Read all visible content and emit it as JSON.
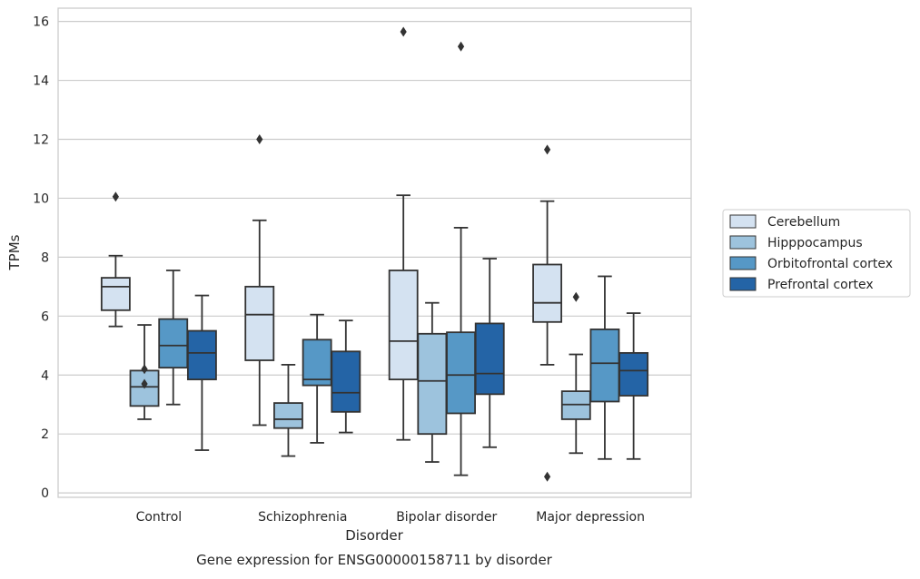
{
  "chart_data": {
    "type": "box",
    "title": "",
    "caption": "Gene expression for ENSG00000158711 by disorder",
    "xlabel": "Disorder",
    "ylabel": "TPMs",
    "ylim": [
      -0.15,
      16.45
    ],
    "yticks": [
      0,
      2,
      4,
      6,
      8,
      10,
      12,
      14,
      16
    ],
    "categories": [
      "Control",
      "Schizophrenia",
      "Bipolar disorder",
      "Major depression"
    ],
    "grid": true,
    "legend_position": "right",
    "series": [
      {
        "name": "Cerebellum",
        "color": "#d4e2f1",
        "boxes": [
          {
            "whisker_low": 5.65,
            "q1": 6.2,
            "median": 7.0,
            "q3": 7.3,
            "whisker_high": 8.05,
            "outliers": [
              10.05
            ]
          },
          {
            "whisker_low": 2.3,
            "q1": 4.5,
            "median": 6.05,
            "q3": 7.0,
            "whisker_high": 9.25,
            "outliers": [
              12.0
            ]
          },
          {
            "whisker_low": 1.8,
            "q1": 3.85,
            "median": 5.15,
            "q3": 7.55,
            "whisker_high": 10.1,
            "outliers": [
              15.65
            ]
          },
          {
            "whisker_low": 4.35,
            "q1": 5.8,
            "median": 6.45,
            "q3": 7.75,
            "whisker_high": 9.9,
            "outliers": [
              11.65,
              0.55
            ]
          }
        ]
      },
      {
        "name": "Hipppocampus",
        "color": "#9dc3dd",
        "boxes": [
          {
            "whisker_low": 2.5,
            "q1": 2.95,
            "median": 3.6,
            "q3": 4.15,
            "whisker_high": 5.7,
            "outliers": [
              4.2,
              3.7
            ]
          },
          {
            "whisker_low": 1.25,
            "q1": 2.2,
            "median": 2.5,
            "q3": 3.05,
            "whisker_high": 4.35,
            "outliers": []
          },
          {
            "whisker_low": 1.05,
            "q1": 2.0,
            "median": 3.8,
            "q3": 5.4,
            "whisker_high": 6.45,
            "outliers": []
          },
          {
            "whisker_low": 1.35,
            "q1": 2.5,
            "median": 3.0,
            "q3": 3.45,
            "whisker_high": 4.7,
            "outliers": [
              6.65
            ]
          }
        ]
      },
      {
        "name": "Orbitofrontal cortex",
        "color": "#5698c6",
        "boxes": [
          {
            "whisker_low": 3.0,
            "q1": 4.25,
            "median": 5.0,
            "q3": 5.9,
            "whisker_high": 7.55,
            "outliers": []
          },
          {
            "whisker_low": 1.7,
            "q1": 3.65,
            "median": 3.85,
            "q3": 5.2,
            "whisker_high": 6.05,
            "outliers": []
          },
          {
            "whisker_low": 0.6,
            "q1": 2.7,
            "median": 4.0,
            "q3": 5.45,
            "whisker_high": 9.0,
            "outliers": [
              15.15
            ]
          },
          {
            "whisker_low": 1.15,
            "q1": 3.1,
            "median": 4.4,
            "q3": 5.55,
            "whisker_high": 7.35,
            "outliers": []
          }
        ]
      },
      {
        "name": "Prefrontal cortex",
        "color": "#2464a6",
        "boxes": [
          {
            "whisker_low": 1.45,
            "q1": 3.85,
            "median": 4.75,
            "q3": 5.5,
            "whisker_high": 6.7,
            "outliers": []
          },
          {
            "whisker_low": 2.05,
            "q1": 2.75,
            "median": 3.4,
            "q3": 4.8,
            "whisker_high": 5.85,
            "outliers": []
          },
          {
            "whisker_low": 1.55,
            "q1": 3.35,
            "median": 4.05,
            "q3": 5.75,
            "whisker_high": 7.95,
            "outliers": []
          },
          {
            "whisker_low": 1.15,
            "q1": 3.3,
            "median": 4.15,
            "q3": 4.75,
            "whisker_high": 6.1,
            "outliers": []
          }
        ]
      }
    ]
  }
}
